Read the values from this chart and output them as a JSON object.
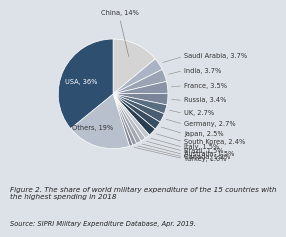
{
  "labels": [
    "China",
    "Saudi Arabia",
    "India",
    "France",
    "Russia",
    "UK",
    "Germany",
    "Japan",
    "South Korea",
    "Italy",
    "Brazil",
    "Australia",
    "Canada",
    "Turkey",
    "Others",
    "USA"
  ],
  "values": [
    14,
    3.7,
    3.7,
    3.5,
    3.4,
    2.7,
    2.7,
    2.5,
    2.4,
    1.5,
    1.5,
    1.5,
    1.2,
    1.0,
    19,
    36
  ],
  "label_texts": [
    "China, 14%",
    "Saudi Arabia, 3.7%",
    "India, 3.7%",
    "France, 3.5%",
    "Russia, 3.4%",
    "UK, 2.7%",
    "Germany, 2.7%",
    "Japan, 2.5%",
    "South Korea, 2.4%",
    "Italy, 1.5%",
    "Brazil, 1.5%",
    "Australia, 1.5%",
    "Canada, 1.2%",
    "Turkey, 1.0%",
    "Others, 19%",
    "USA, 36%"
  ],
  "colors": [
    "#d4d4d4",
    "#aab4c4",
    "#9aa4b4",
    "#8a94a6",
    "#7a8698",
    "#5a6e82",
    "#4a5e72",
    "#3a4e62",
    "#2a3e52",
    "#c4c8d0",
    "#b4b8c0",
    "#a4a8b0",
    "#9498a2",
    "#848894",
    "#b8c0ce",
    "#2e4f70"
  ],
  "background_color": "#dde2e8",
  "figure_caption": "Figure 2. The share of world military expenditure of the 15 countries with\nthe highest spending in 2018",
  "source_text": "Source: SIPRI Military Expenditure Database, Apr. 2019.",
  "font_size": 4.8,
  "caption_font_size": 5.2,
  "source_font_size": 4.8
}
